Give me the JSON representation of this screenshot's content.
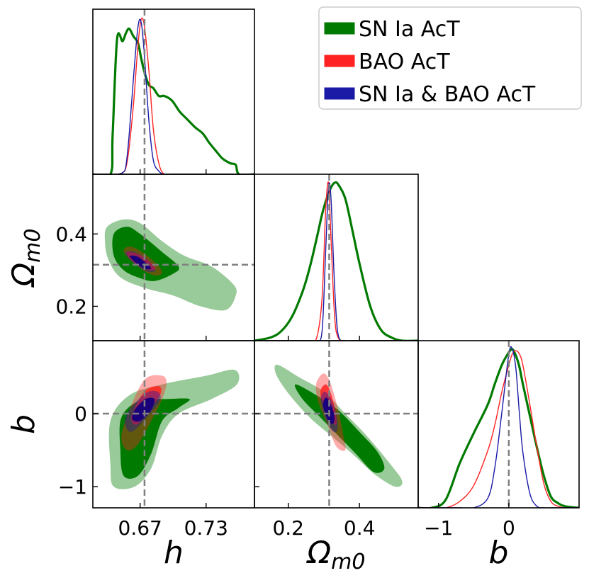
{
  "chart_data": {
    "type": "corner",
    "title": "",
    "parameters": [
      {
        "name": "h",
        "label": "h",
        "sub": "",
        "range": [
          0.627,
          0.774
        ],
        "ticks": [
          0.67,
          0.73
        ],
        "tick_labels": [
          "0.67",
          "0.73"
        ],
        "truth": 0.674
      },
      {
        "name": "Omega_m0",
        "label": "Ω",
        "sub": "m0",
        "range": [
          0.105,
          0.565
        ],
        "ticks": [
          0.2,
          0.4
        ],
        "tick_labels": [
          "0.2",
          "0.4"
        ],
        "truth": 0.315
      },
      {
        "name": "b",
        "label": "b",
        "sub": "",
        "range": [
          -1.29,
          1.0
        ],
        "ticks": [
          -1,
          0
        ],
        "tick_labels": [
          "−1",
          "0"
        ],
        "truth": 0.0
      }
    ],
    "colors": {
      "sn": "#007a00",
      "bao": "#ff2222",
      "joint": "#1a1aa6",
      "truth_line": "#808080"
    },
    "legend": {
      "placement": "top-right",
      "entries": [
        {
          "label": "SN Ia AcT",
          "series": "sn"
        },
        {
          "label": "BAO AcT",
          "series": "bao"
        },
        {
          "label": "SN Ia & BAO AcT",
          "series": "joint"
        }
      ]
    },
    "marginals": {
      "h": {
        "x": [
          0.627,
          0.643,
          0.645,
          0.649,
          0.654,
          0.657,
          0.66,
          0.664,
          0.668,
          0.671,
          0.674,
          0.678,
          0.682,
          0.687,
          0.692,
          0.699,
          0.706,
          0.713,
          0.72,
          0.727,
          0.733,
          0.74,
          0.745,
          0.752,
          0.757,
          0.76,
          0.774
        ],
        "sn": [
          0.0,
          0.0,
          0.25,
          0.86,
          0.85,
          0.9,
          0.93,
          0.88,
          0.84,
          0.74,
          0.65,
          0.57,
          0.55,
          0.5,
          0.5,
          0.47,
          0.4,
          0.35,
          0.3,
          0.26,
          0.2,
          0.14,
          0.1,
          0.07,
          0.06,
          0.0,
          0.0
        ],
        "bao": [
          0.0,
          0.0,
          0.0,
          0.0,
          0.01,
          0.04,
          0.17,
          0.45,
          0.82,
          0.99,
          0.94,
          0.66,
          0.29,
          0.07,
          0.0,
          0.0,
          0.0,
          0.0,
          0.0,
          0.0,
          0.0,
          0.0,
          0.0,
          0.0,
          0.0,
          0.0,
          0.0
        ],
        "joint": [
          0.0,
          0.0,
          0.0,
          0.0,
          0.01,
          0.05,
          0.25,
          0.62,
          0.94,
          0.97,
          0.75,
          0.34,
          0.09,
          0.02,
          0.0,
          0.0,
          0.0,
          0.0,
          0.0,
          0.0,
          0.0,
          0.0,
          0.0,
          0.0,
          0.0,
          0.0,
          0.0
        ]
      },
      "Omega_m0": {
        "x": [
          0.105,
          0.15,
          0.18,
          0.21,
          0.24,
          0.26,
          0.28,
          0.295,
          0.305,
          0.313,
          0.32,
          0.33,
          0.34,
          0.36,
          0.38,
          0.4,
          0.43,
          0.46,
          0.49,
          0.52,
          0.565
        ],
        "sn": [
          0.0,
          0.02,
          0.06,
          0.15,
          0.31,
          0.46,
          0.65,
          0.8,
          0.88,
          0.93,
          0.97,
          1.0,
          0.99,
          0.9,
          0.7,
          0.49,
          0.22,
          0.07,
          0.02,
          0.0,
          0.0
        ],
        "bao": [
          0.0,
          0.0,
          0.0,
          0.0,
          0.0,
          0.0,
          0.02,
          0.27,
          0.82,
          1.0,
          0.65,
          0.16,
          0.02,
          0.0,
          0.0,
          0.0,
          0.0,
          0.0,
          0.0,
          0.0,
          0.0
        ],
        "joint": [
          0.0,
          0.0,
          0.0,
          0.0,
          0.0,
          0.0,
          0.0,
          0.06,
          0.56,
          0.97,
          0.9,
          0.35,
          0.04,
          0.0,
          0.0,
          0.0,
          0.0,
          0.0,
          0.0,
          0.0,
          0.0
        ]
      },
      "b": {
        "x": [
          -1.29,
          -1.1,
          -0.9,
          -0.7,
          -0.5,
          -0.3,
          -0.2,
          -0.1,
          0.0,
          0.05,
          0.1,
          0.15,
          0.2,
          0.3,
          0.4,
          0.5,
          0.6,
          0.7,
          0.8,
          1.0
        ],
        "sn": [
          0.0,
          0.0,
          0.05,
          0.28,
          0.47,
          0.65,
          0.78,
          0.9,
          0.98,
          1.0,
          0.96,
          0.89,
          0.78,
          0.58,
          0.38,
          0.2,
          0.07,
          0.03,
          0.01,
          0.0
        ],
        "bao": [
          0.0,
          0.0,
          0.0,
          0.04,
          0.14,
          0.36,
          0.52,
          0.73,
          0.9,
          0.97,
          0.99,
          0.97,
          0.9,
          0.65,
          0.38,
          0.15,
          0.04,
          0.01,
          0.0,
          0.0
        ],
        "joint": [
          0.0,
          0.0,
          0.0,
          0.0,
          0.0,
          0.06,
          0.25,
          0.6,
          0.97,
          1.0,
          0.88,
          0.6,
          0.35,
          0.09,
          0.01,
          0.0,
          0.0,
          0.0,
          0.0,
          0.0
        ]
      }
    },
    "contours_2d": [
      {
        "x": "h",
        "y": "Omega_m0",
        "sn": {
          "outer": [
            [
              0.64,
              0.42
            ],
            [
              0.655,
              0.44
            ],
            [
              0.67,
              0.43
            ],
            [
              0.69,
              0.38
            ],
            [
              0.71,
              0.34
            ],
            [
              0.735,
              0.31
            ],
            [
              0.755,
              0.26
            ],
            [
              0.757,
              0.23
            ],
            [
              0.748,
              0.19
            ],
            [
              0.725,
              0.2
            ],
            [
              0.7,
              0.23
            ],
            [
              0.675,
              0.25
            ],
            [
              0.652,
              0.28
            ],
            [
              0.641,
              0.33
            ],
            [
              0.638,
              0.38
            ]
          ],
          "inner": [
            [
              0.646,
              0.4
            ],
            [
              0.658,
              0.42
            ],
            [
              0.67,
              0.4
            ],
            [
              0.69,
              0.35
            ],
            [
              0.705,
              0.31
            ],
            [
              0.7,
              0.29
            ],
            [
              0.683,
              0.27
            ],
            [
              0.668,
              0.28
            ],
            [
              0.655,
              0.3
            ],
            [
              0.646,
              0.34
            ]
          ]
        },
        "bao": {
          "outer": [
            [
              0.656,
              0.36
            ],
            [
              0.662,
              0.365
            ],
            [
              0.672,
              0.35
            ],
            [
              0.684,
              0.32
            ],
            [
              0.69,
              0.295
            ],
            [
              0.685,
              0.285
            ],
            [
              0.675,
              0.295
            ],
            [
              0.664,
              0.32
            ],
            [
              0.656,
              0.345
            ]
          ],
          "inner": [
            [
              0.658,
              0.35
            ],
            [
              0.668,
              0.345
            ],
            [
              0.678,
              0.325
            ],
            [
              0.684,
              0.305
            ],
            [
              0.679,
              0.3
            ],
            [
              0.67,
              0.31
            ],
            [
              0.661,
              0.33
            ]
          ]
        },
        "joint": {
          "outer": [
            [
              0.657,
              0.35
            ],
            [
              0.665,
              0.35
            ],
            [
              0.678,
              0.325
            ],
            [
              0.684,
              0.3
            ],
            [
              0.678,
              0.295
            ],
            [
              0.668,
              0.31
            ],
            [
              0.659,
              0.335
            ]
          ],
          "inner": [
            [
              0.661,
              0.34
            ],
            [
              0.668,
              0.337
            ],
            [
              0.676,
              0.318
            ],
            [
              0.68,
              0.305
            ],
            [
              0.675,
              0.303
            ],
            [
              0.667,
              0.318
            ],
            [
              0.662,
              0.332
            ]
          ]
        }
      },
      {
        "x": "h",
        "y": "b",
        "sn": {
          "outer": [
            [
              0.643,
              -0.1
            ],
            [
              0.66,
              0.25
            ],
            [
              0.69,
              0.4
            ],
            [
              0.73,
              0.52
            ],
            [
              0.756,
              0.6
            ],
            [
              0.758,
              0.4
            ],
            [
              0.735,
              0.2
            ],
            [
              0.705,
              0.0
            ],
            [
              0.69,
              -0.3
            ],
            [
              0.68,
              -0.75
            ],
            [
              0.665,
              -1.0
            ],
            [
              0.646,
              -1.0
            ],
            [
              0.643,
              -0.7
            ]
          ],
          "inner": [
            [
              0.653,
              -0.05
            ],
            [
              0.67,
              0.18
            ],
            [
              0.695,
              0.2
            ],
            [
              0.715,
              0.2
            ],
            [
              0.705,
              0.08
            ],
            [
              0.69,
              -0.1
            ],
            [
              0.68,
              -0.55
            ],
            [
              0.668,
              -0.85
            ],
            [
              0.655,
              -0.85
            ],
            [
              0.652,
              -0.5
            ]
          ]
        },
        "bao": {
          "outer": [
            [
              0.663,
              0.15
            ],
            [
              0.675,
              0.48
            ],
            [
              0.69,
              0.52
            ],
            [
              0.694,
              0.42
            ],
            [
              0.69,
              0.2
            ],
            [
              0.68,
              -0.1
            ],
            [
              0.668,
              -0.42
            ],
            [
              0.658,
              -0.5
            ],
            [
              0.653,
              -0.3
            ]
          ],
          "inner": [
            [
              0.67,
              0.22
            ],
            [
              0.678,
              0.35
            ],
            [
              0.688,
              0.37
            ],
            [
              0.688,
              0.25
            ],
            [
              0.678,
              0.05
            ],
            [
              0.667,
              -0.15
            ],
            [
              0.662,
              -0.05
            ]
          ]
        },
        "joint": {
          "outer": [
            [
              0.66,
              0.05
            ],
            [
              0.675,
              0.28
            ],
            [
              0.686,
              0.3
            ],
            [
              0.688,
              0.18
            ],
            [
              0.676,
              -0.05
            ],
            [
              0.662,
              -0.25
            ],
            [
              0.656,
              -0.12
            ]
          ],
          "inner": [
            [
              0.665,
              0.05
            ],
            [
              0.675,
              0.2
            ],
            [
              0.683,
              0.2
            ],
            [
              0.68,
              0.05
            ],
            [
              0.67,
              -0.1
            ],
            [
              0.663,
              -0.08
            ]
          ]
        }
      },
      {
        "x": "Omega_m0",
        "y": "b",
        "sn": {
          "outer": [
            [
              0.17,
              0.67
            ],
            [
              0.23,
              0.5
            ],
            [
              0.3,
              0.3
            ],
            [
              0.36,
              0.0
            ],
            [
              0.42,
              -0.3
            ],
            [
              0.48,
              -0.65
            ],
            [
              0.52,
              -0.92
            ],
            [
              0.5,
              -1.0
            ],
            [
              0.44,
              -0.82
            ],
            [
              0.38,
              -0.55
            ],
            [
              0.32,
              -0.3
            ],
            [
              0.26,
              -0.05
            ],
            [
              0.2,
              0.28
            ],
            [
              0.165,
              0.55
            ]
          ],
          "inner": [
            [
              0.22,
              0.4
            ],
            [
              0.28,
              0.25
            ],
            [
              0.34,
              0.05
            ],
            [
              0.4,
              -0.25
            ],
            [
              0.45,
              -0.52
            ],
            [
              0.47,
              -0.75
            ],
            [
              0.44,
              -0.8
            ],
            [
              0.39,
              -0.55
            ],
            [
              0.34,
              -0.3
            ],
            [
              0.29,
              -0.05
            ],
            [
              0.24,
              0.2
            ]
          ]
        },
        "bao": {
          "outer": [
            [
              0.278,
              0.4
            ],
            [
              0.298,
              0.55
            ],
            [
              0.316,
              0.45
            ],
            [
              0.338,
              0.1
            ],
            [
              0.355,
              -0.3
            ],
            [
              0.36,
              -0.5
            ],
            [
              0.335,
              -0.45
            ],
            [
              0.31,
              -0.15
            ],
            [
              0.285,
              0.15
            ]
          ],
          "inner": [
            [
              0.29,
              0.3
            ],
            [
              0.305,
              0.4
            ],
            [
              0.318,
              0.3
            ],
            [
              0.332,
              0.05
            ],
            [
              0.335,
              -0.15
            ],
            [
              0.318,
              -0.08
            ],
            [
              0.3,
              0.1
            ]
          ]
        },
        "joint": {
          "outer": [
            [
              0.292,
              0.22
            ],
            [
              0.305,
              0.3
            ],
            [
              0.325,
              0.15
            ],
            [
              0.338,
              -0.1
            ],
            [
              0.335,
              -0.25
            ],
            [
              0.318,
              -0.2
            ],
            [
              0.3,
              0.0
            ]
          ],
          "inner": [
            [
              0.298,
              0.15
            ],
            [
              0.308,
              0.22
            ],
            [
              0.322,
              0.1
            ],
            [
              0.33,
              -0.05
            ],
            [
              0.326,
              -0.14
            ],
            [
              0.313,
              -0.1
            ],
            [
              0.302,
              0.03
            ]
          ]
        }
      }
    ]
  }
}
